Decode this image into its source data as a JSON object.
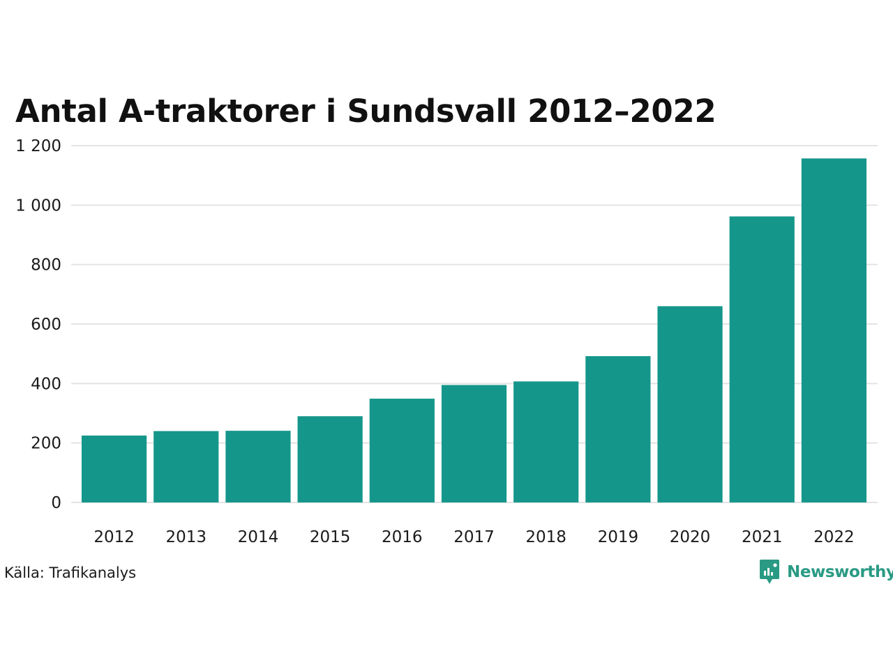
{
  "chart_data": {
    "type": "bar",
    "title": "Antal A-traktorer i Sundsvall 2012–2022",
    "categories": [
      "2012",
      "2013",
      "2014",
      "2015",
      "2016",
      "2017",
      "2018",
      "2019",
      "2020",
      "2021",
      "2022"
    ],
    "values": [
      225,
      240,
      241,
      290,
      349,
      395,
      407,
      492,
      660,
      962,
      1157
    ],
    "ylim": [
      0,
      1200
    ],
    "yticks": [
      0,
      200,
      400,
      600,
      800,
      1000,
      1200
    ],
    "ytick_labels": [
      "0",
      "200",
      "400",
      "600",
      "800",
      "1 000",
      "1 200"
    ],
    "xlabel": "",
    "ylabel": "",
    "grid": true,
    "bar_color": "#15968a"
  },
  "footer": {
    "source": "Källa: Trafikanalys",
    "brand": "Newsworthy",
    "brand_icon": "newsworthy-logo-icon",
    "brand_color": "#2a9a84"
  }
}
